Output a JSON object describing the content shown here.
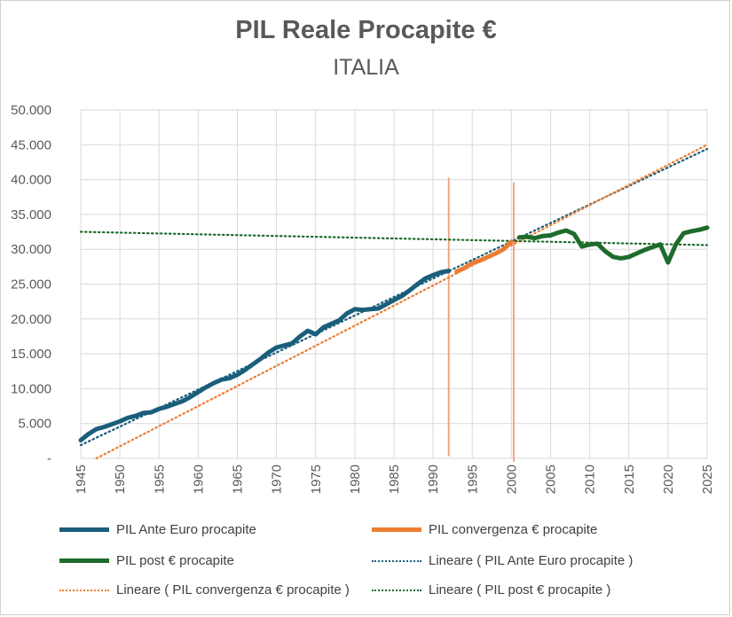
{
  "colors": {
    "ante": "#1b5e7b",
    "conv": "#ed7d31",
    "post": "#1e6b2b",
    "trend_ante": "#1b5e7b",
    "trend_conv": "#ed7d31",
    "trend_post": "#1e6b2b",
    "vline": "#f4a57e",
    "grid": "#d9d9d9",
    "text": "#595959"
  },
  "chart_data": {
    "type": "line",
    "title": "PIL Reale Procapite €",
    "subtitle": "ITALIA",
    "xlabel": "",
    "ylabel": "",
    "xlim": [
      1945,
      2025
    ],
    "ylim": [
      0,
      50000
    ],
    "x_ticks": [
      1945,
      1950,
      1955,
      1960,
      1965,
      1970,
      1975,
      1980,
      1985,
      1990,
      1995,
      2000,
      2005,
      2010,
      2015,
      2020,
      2025
    ],
    "y_ticks": [
      0,
      5000,
      10000,
      15000,
      20000,
      25000,
      30000,
      35000,
      40000,
      45000,
      50000
    ],
    "y_tick_labels": [
      "-",
      "5.000",
      "10.000",
      "15.000",
      "20.000",
      "25.000",
      "30.000",
      "35.000",
      "40.000",
      "45.000",
      "50.000"
    ],
    "grid": true,
    "legend_position": "bottom",
    "series": [
      {
        "name": "PIL Ante Euro procapite",
        "style": "solid",
        "x": [
          1945,
          1946,
          1947,
          1948,
          1949,
          1950,
          1951,
          1952,
          1953,
          1954,
          1955,
          1956,
          1957,
          1958,
          1959,
          1960,
          1961,
          1962,
          1963,
          1964,
          1965,
          1966,
          1967,
          1968,
          1969,
          1970,
          1971,
          1972,
          1973,
          1974,
          1975,
          1976,
          1977,
          1978,
          1979,
          1980,
          1981,
          1982,
          1983,
          1984,
          1985,
          1986,
          1987,
          1988,
          1989,
          1990,
          1991,
          1992
        ],
        "values": [
          2600,
          3500,
          4200,
          4500,
          4900,
          5300,
          5800,
          6100,
          6500,
          6600,
          7100,
          7400,
          7800,
          8200,
          8800,
          9500,
          10200,
          10800,
          11300,
          11500,
          12000,
          12700,
          13500,
          14300,
          15200,
          15900,
          16200,
          16500,
          17500,
          18300,
          17800,
          18800,
          19300,
          19800,
          20800,
          21400,
          21300,
          21400,
          21500,
          22100,
          22700,
          23300,
          24100,
          25000,
          25800,
          26300,
          26700,
          26900
        ]
      },
      {
        "name": "PIL convergenza € procapite",
        "style": "solid",
        "x": [
          1993,
          1994,
          1995,
          1996,
          1997,
          1998,
          1999,
          2000
        ],
        "values": [
          26800,
          27300,
          28000,
          28400,
          28900,
          29400,
          30000,
          31100
        ]
      },
      {
        "name": "PIL post € procapite",
        "style": "solid",
        "x": [
          2001,
          2002,
          2003,
          2004,
          2005,
          2006,
          2007,
          2008,
          2009,
          2010,
          2011,
          2012,
          2013,
          2014,
          2015,
          2016,
          2017,
          2018,
          2019,
          2020,
          2021,
          2022,
          2023,
          2024,
          2025
        ],
        "values": [
          31700,
          31800,
          31600,
          31900,
          32000,
          32400,
          32700,
          32200,
          30400,
          30700,
          30800,
          29700,
          28900,
          28700,
          28900,
          29400,
          29900,
          30300,
          30700,
          28100,
          30700,
          32300,
          32600,
          32800,
          33100
        ]
      },
      {
        "name": "Lineare ( PIL Ante Euro procapite )",
        "style": "dotted",
        "x": [
          1945,
          2025
        ],
        "values": [
          1900,
          44400
        ]
      },
      {
        "name": "Lineare ( PIL convergenza € procapite )",
        "style": "dotted",
        "x": [
          1947,
          2025
        ],
        "values": [
          0,
          45000
        ]
      },
      {
        "name": "Lineare ( PIL post € procapite )",
        "style": "dotted",
        "x": [
          1945,
          2025
        ],
        "values": [
          32500,
          30600
        ]
      }
    ],
    "vertical_lines": [
      {
        "x": 1992,
        "top": 40300,
        "bottom": 300
      },
      {
        "x": 2000.3,
        "top": 39600,
        "bottom": -500
      }
    ]
  }
}
